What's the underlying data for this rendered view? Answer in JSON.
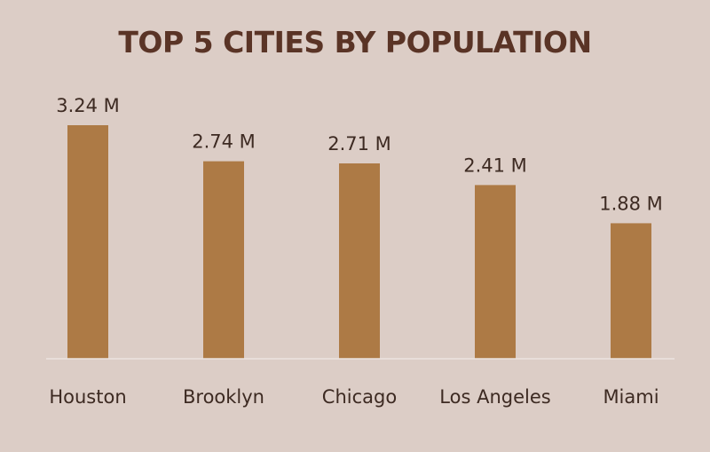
{
  "chart_data": {
    "type": "bar",
    "title": "TOP 5 CITIES BY POPULATION",
    "categories": [
      "Houston",
      "Brooklyn",
      "Chicago",
      "Los Angeles",
      "Miami"
    ],
    "values": [
      3.24,
      2.74,
      2.71,
      2.41,
      1.88
    ],
    "data_labels": [
      "3.24 M",
      "2.74 M",
      "2.71 M",
      "2.41 M",
      "1.88 M"
    ],
    "unit": "M",
    "ylim": [
      0,
      3.24
    ],
    "grid": false,
    "legend": "none",
    "colors": {
      "bar": "#ad7a45",
      "background": "#dccdc6",
      "title": "#5a3426",
      "text": "#3d2a22"
    }
  }
}
